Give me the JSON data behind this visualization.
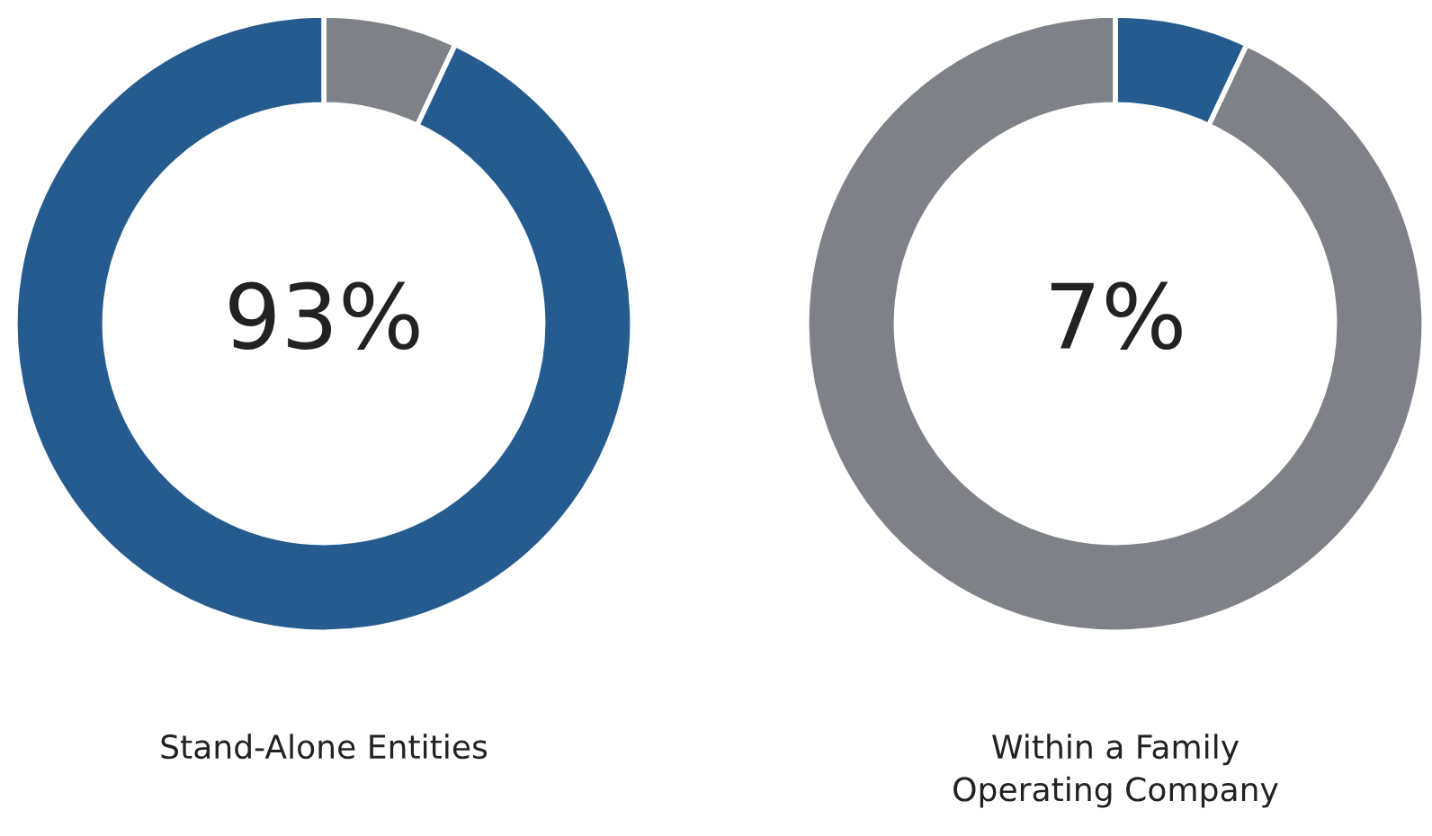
{
  "chart_data": [
    {
      "type": "donut",
      "title": "Stand-Alone Entities",
      "categories": [
        null,
        null
      ],
      "values": [
        7,
        93
      ],
      "colors": [
        "#7f8189",
        "#255b8f"
      ],
      "annotations": [
        "93%"
      ],
      "legend": false
    },
    {
      "type": "donut",
      "title": "Within a Family\nOperating Company",
      "categories": [
        null,
        null
      ],
      "values": [
        7,
        93
      ],
      "colors": [
        "#255b8f",
        "#7f8189"
      ],
      "annotations": [
        "7%"
      ],
      "legend": false
    }
  ]
}
